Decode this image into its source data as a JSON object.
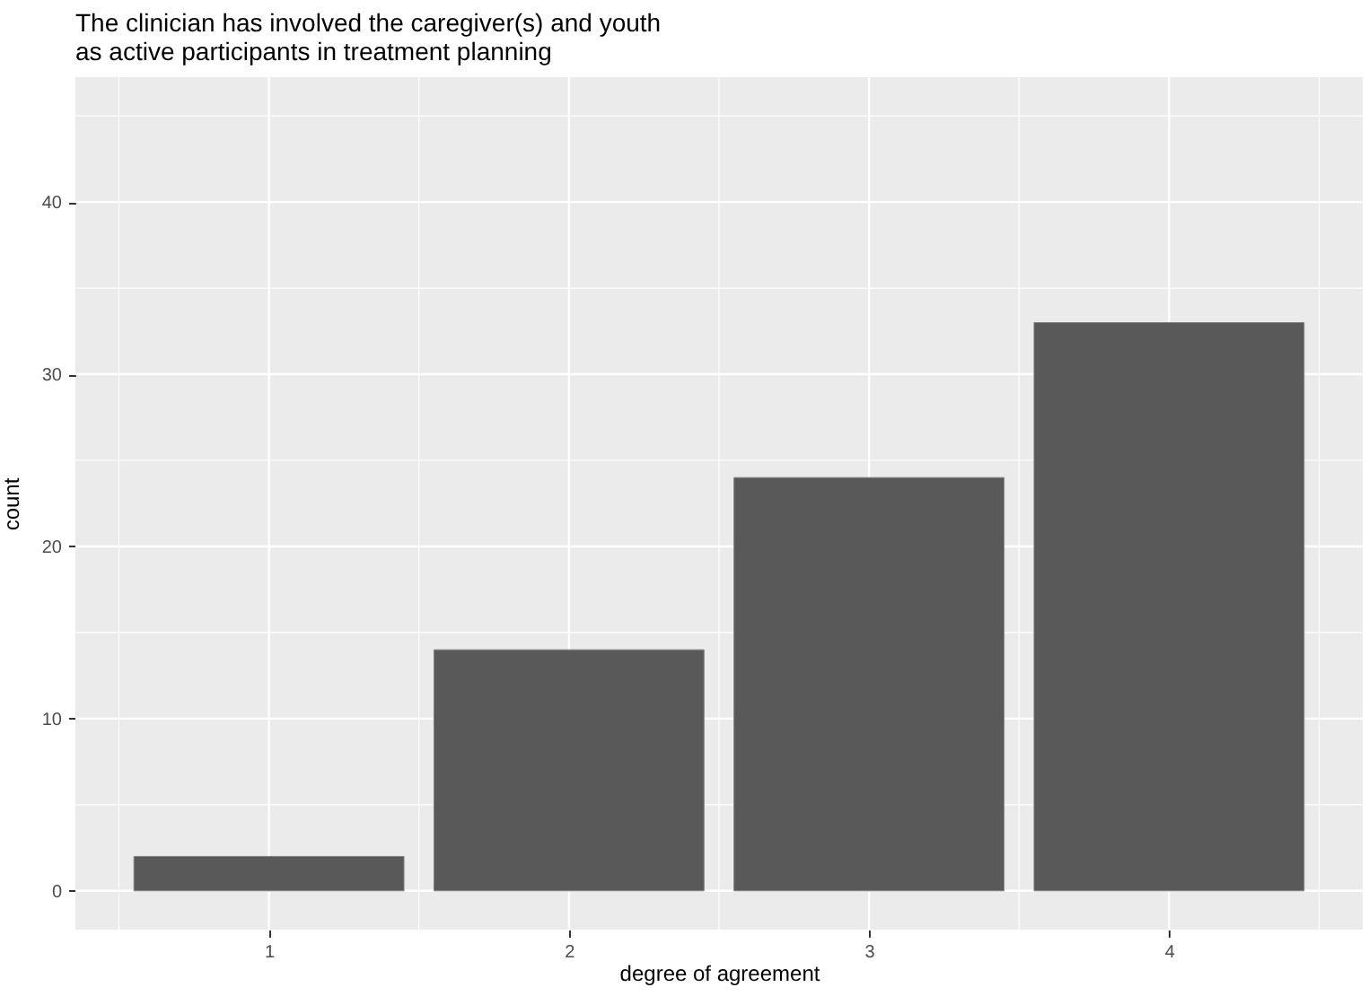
{
  "chart_data": {
    "type": "bar",
    "title": "The clinician has involved the caregiver(s) and youth\n as active participants in treatment planning",
    "xlabel": "degree of agreement",
    "ylabel": "count",
    "x": [
      1,
      2,
      3,
      4
    ],
    "values": [
      2,
      14,
      24,
      33
    ],
    "color": "#595959",
    "xlim": [
      0.355,
      4.645
    ],
    "xticks": [
      1,
      2,
      3,
      4
    ],
    "ylim": [
      -2.25,
      47.25
    ],
    "yticks": [
      0,
      10,
      20,
      30,
      40
    ],
    "grid": true
  }
}
